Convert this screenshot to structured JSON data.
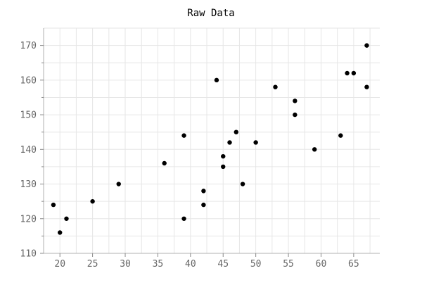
{
  "chart_data": {
    "type": "scatter",
    "title": "Raw Data",
    "xlabel": "",
    "ylabel": "",
    "xlim": [
      17.5,
      69
    ],
    "ylim": [
      110,
      175
    ],
    "x_ticks": [
      20,
      25,
      30,
      35,
      40,
      45,
      50,
      55,
      60,
      65
    ],
    "y_ticks": [
      110,
      120,
      130,
      140,
      150,
      160,
      170
    ],
    "grid": true,
    "marker_color": "#000000",
    "points": [
      {
        "x": 19,
        "y": 124
      },
      {
        "x": 20,
        "y": 116
      },
      {
        "x": 21,
        "y": 120
      },
      {
        "x": 25,
        "y": 125
      },
      {
        "x": 29,
        "y": 130
      },
      {
        "x": 36,
        "y": 136
      },
      {
        "x": 39,
        "y": 120
      },
      {
        "x": 39,
        "y": 144
      },
      {
        "x": 42,
        "y": 124
      },
      {
        "x": 42,
        "y": 128
      },
      {
        "x": 44,
        "y": 160
      },
      {
        "x": 45,
        "y": 135
      },
      {
        "x": 45,
        "y": 138
      },
      {
        "x": 46,
        "y": 142
      },
      {
        "x": 47,
        "y": 145
      },
      {
        "x": 48,
        "y": 130
      },
      {
        "x": 50,
        "y": 142
      },
      {
        "x": 53,
        "y": 158
      },
      {
        "x": 56,
        "y": 150
      },
      {
        "x": 56,
        "y": 154
      },
      {
        "x": 59,
        "y": 140
      },
      {
        "x": 63,
        "y": 144
      },
      {
        "x": 64,
        "y": 162
      },
      {
        "x": 65,
        "y": 162
      },
      {
        "x": 67,
        "y": 158
      },
      {
        "x": 67,
        "y": 170
      }
    ]
  }
}
